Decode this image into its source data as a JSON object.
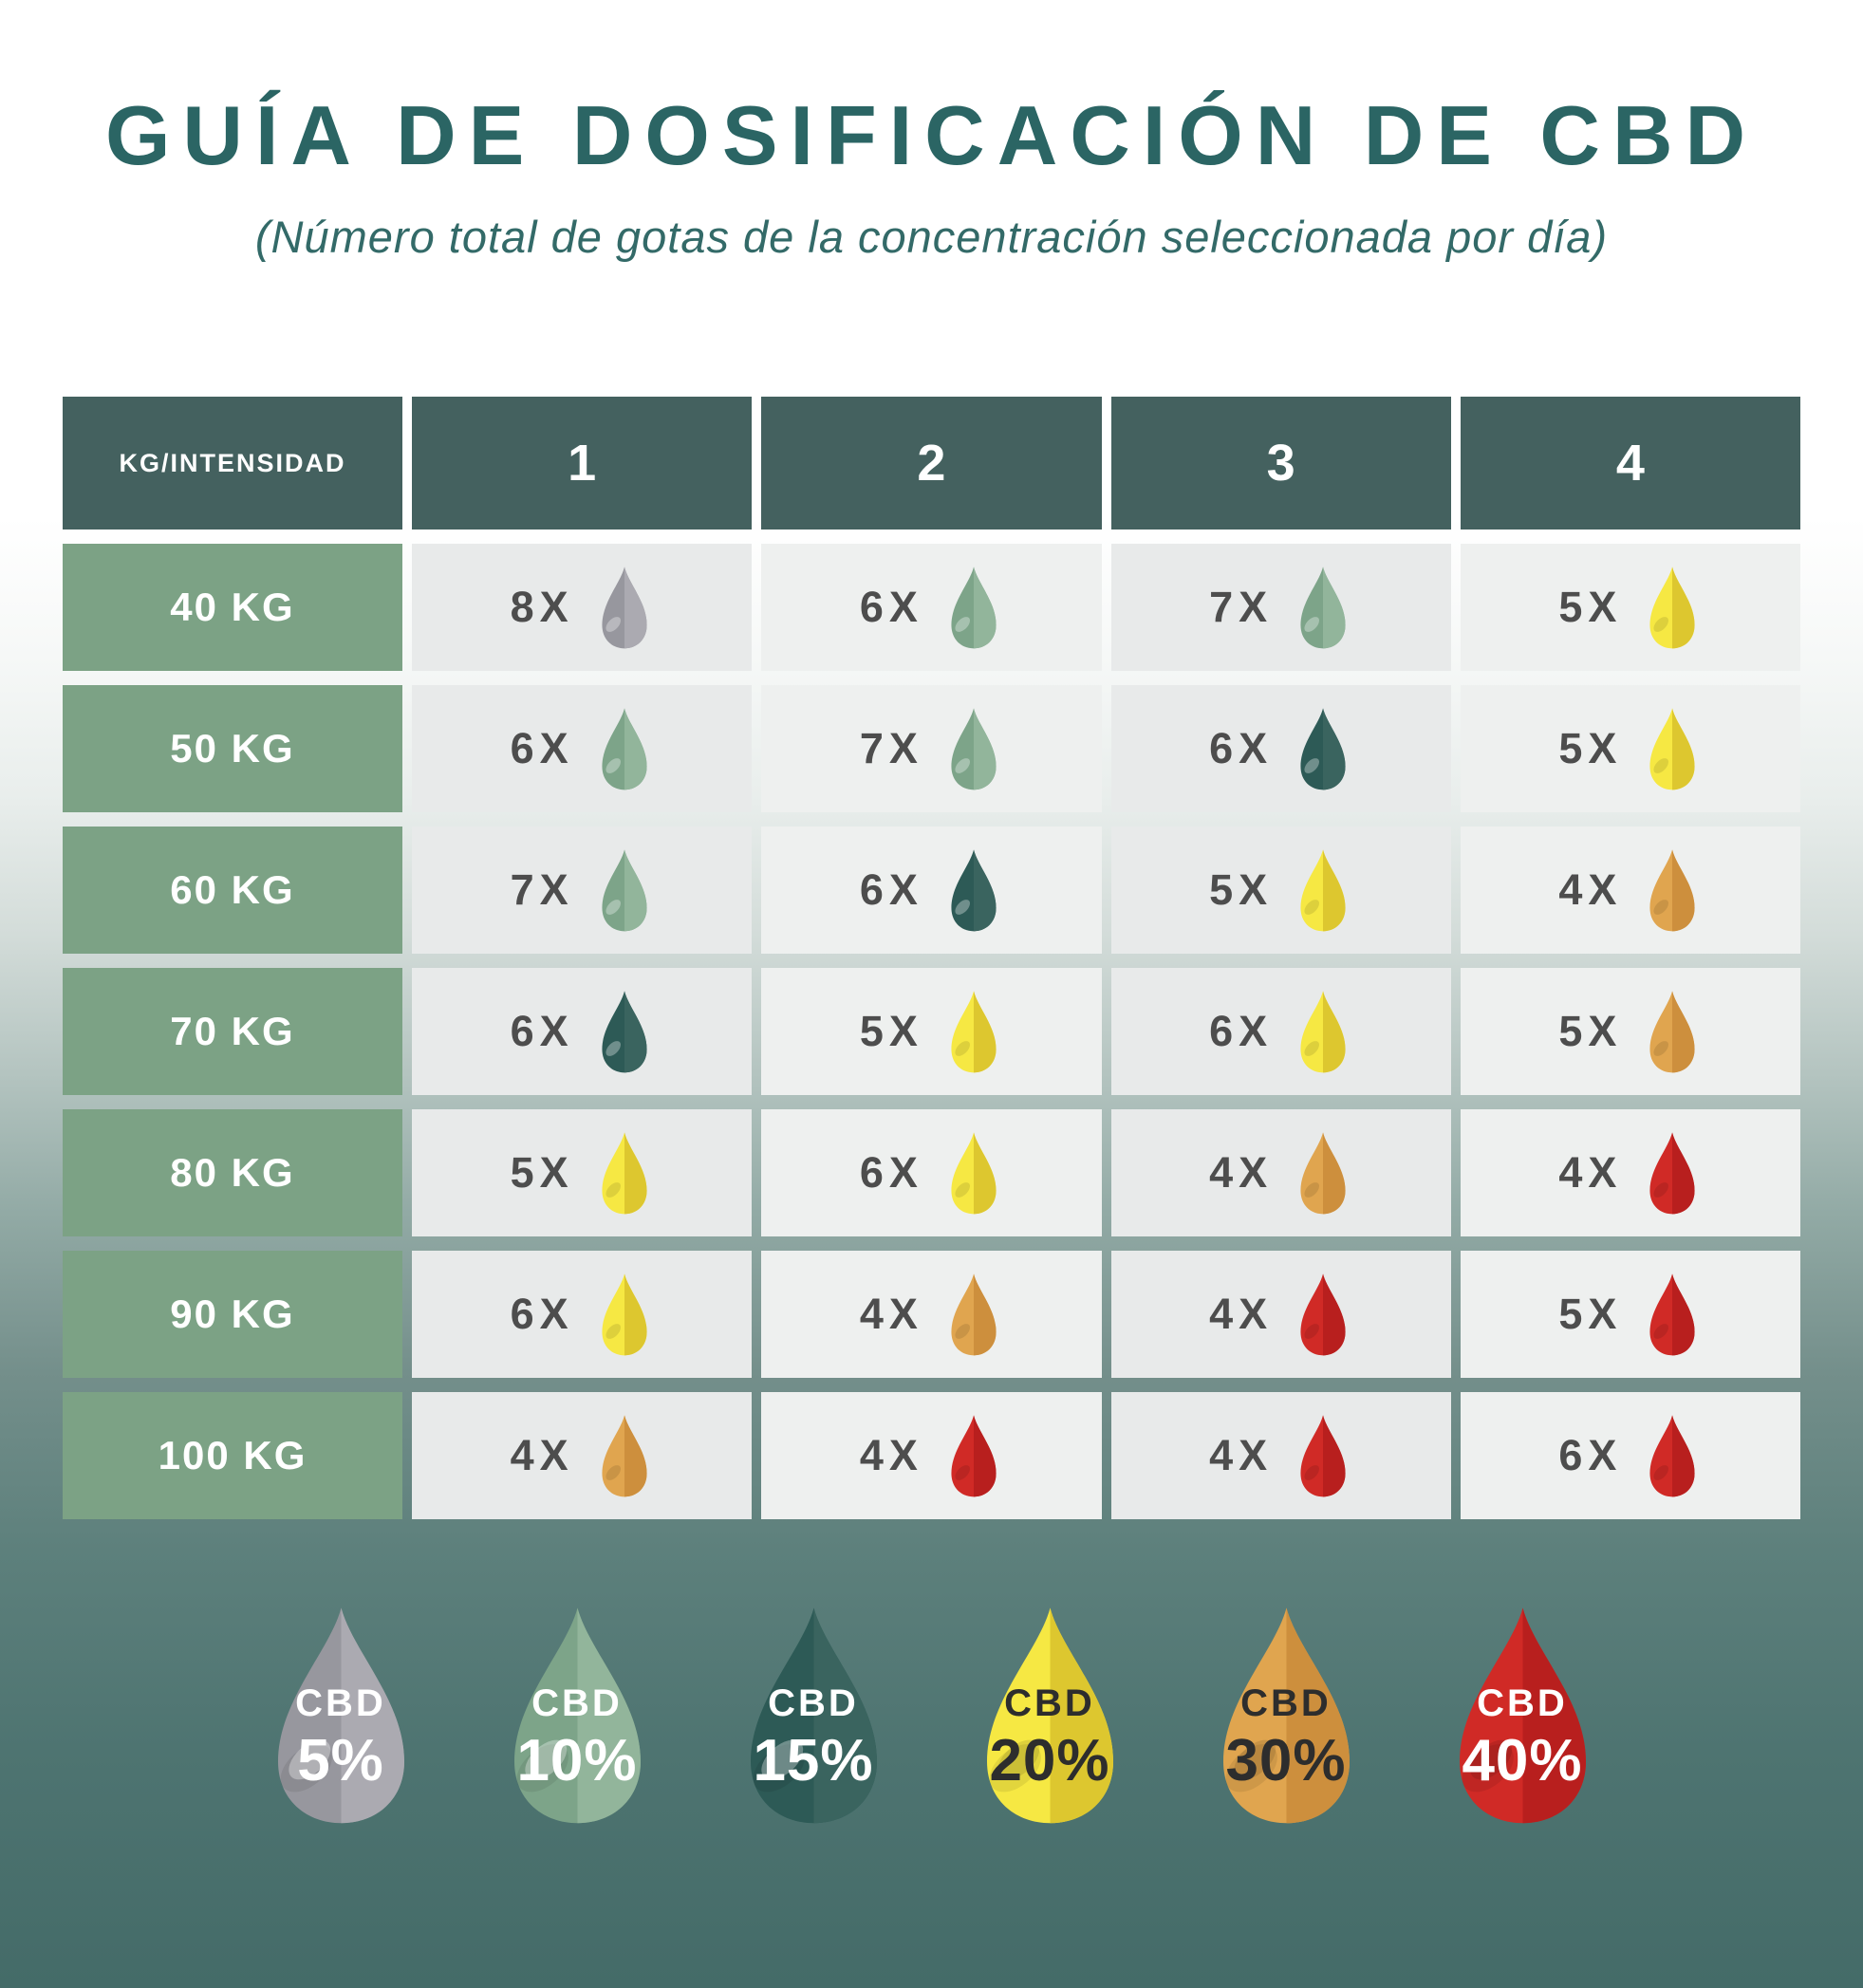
{
  "chart_data": {
    "type": "table",
    "title": "GUÍA DE DOSIFICACIÓN DE CBD",
    "subtitle": "(Número total de gotas de la concentración seleccionada por día)",
    "corner_label": "KG/INTENSIDAD",
    "columns": [
      "1",
      "2",
      "3",
      "4"
    ],
    "rows": [
      {
        "label": "40 KG",
        "cells": [
          {
            "count": "8X",
            "conc": "5"
          },
          {
            "count": "6X",
            "conc": "10"
          },
          {
            "count": "7X",
            "conc": "10"
          },
          {
            "count": "5X",
            "conc": "20"
          }
        ]
      },
      {
        "label": "50 KG",
        "cells": [
          {
            "count": "6X",
            "conc": "10"
          },
          {
            "count": "7X",
            "conc": "10"
          },
          {
            "count": "6X",
            "conc": "15"
          },
          {
            "count": "5X",
            "conc": "20"
          }
        ]
      },
      {
        "label": "60 KG",
        "cells": [
          {
            "count": "7X",
            "conc": "10"
          },
          {
            "count": "6X",
            "conc": "15"
          },
          {
            "count": "5X",
            "conc": "20"
          },
          {
            "count": "4X",
            "conc": "30"
          }
        ]
      },
      {
        "label": "70 KG",
        "cells": [
          {
            "count": "6X",
            "conc": "15"
          },
          {
            "count": "5X",
            "conc": "20"
          },
          {
            "count": "6X",
            "conc": "20"
          },
          {
            "count": "5X",
            "conc": "30"
          }
        ]
      },
      {
        "label": "80 KG",
        "cells": [
          {
            "count": "5X",
            "conc": "20"
          },
          {
            "count": "6X",
            "conc": "20"
          },
          {
            "count": "4X",
            "conc": "30"
          },
          {
            "count": "4X",
            "conc": "40"
          }
        ]
      },
      {
        "label": "90 KG",
        "cells": [
          {
            "count": "6X",
            "conc": "20"
          },
          {
            "count": "4X",
            "conc": "30"
          },
          {
            "count": "4X",
            "conc": "40"
          },
          {
            "count": "5X",
            "conc": "40"
          }
        ]
      },
      {
        "label": "100 KG",
        "cells": [
          {
            "count": "4X",
            "conc": "30"
          },
          {
            "count": "4X",
            "conc": "40"
          },
          {
            "count": "4X",
            "conc": "40"
          },
          {
            "count": "6X",
            "conc": "40"
          }
        ]
      }
    ],
    "legend": [
      "5",
      "10",
      "15",
      "20",
      "30",
      "40"
    ]
  },
  "concentrations": {
    "5": {
      "label": "CBD",
      "pct": "5%",
      "left": "#97979e",
      "right": "#abaab1",
      "text": "#ffffff",
      "hl": "light"
    },
    "10": {
      "label": "CBD",
      "pct": "10%",
      "left": "#7da489",
      "right": "#92b59b",
      "text": "#ffffff",
      "hl": "light"
    },
    "15": {
      "label": "CBD",
      "pct": "15%",
      "left": "#2d5a56",
      "right": "#3a645f",
      "text": "#ffffff",
      "hl": "light"
    },
    "20": {
      "label": "CBD",
      "pct": "20%",
      "left": "#f6e843",
      "right": "#ddc72f",
      "text": "#2d2d2d",
      "hl": "dark"
    },
    "30": {
      "label": "CBD",
      "pct": "30%",
      "left": "#e0a54f",
      "right": "#cd8f3d",
      "text": "#2d2d2d",
      "hl": "dark"
    },
    "40": {
      "label": "CBD",
      "pct": "40%",
      "left": "#d02a26",
      "right": "#b81f1e",
      "text": "#ffffff",
      "hl": "dark"
    }
  },
  "palette": {
    "title_text": "#2b6564",
    "table_header_bg": "#44615f",
    "row_label_bg": "#7ca285",
    "cell_bg_a": "#e8eaea",
    "cell_bg_b": "#eef0ef",
    "cell_text": "#4d4d4d",
    "background_top": "#ffffff",
    "background_bottom": "#446b68"
  }
}
